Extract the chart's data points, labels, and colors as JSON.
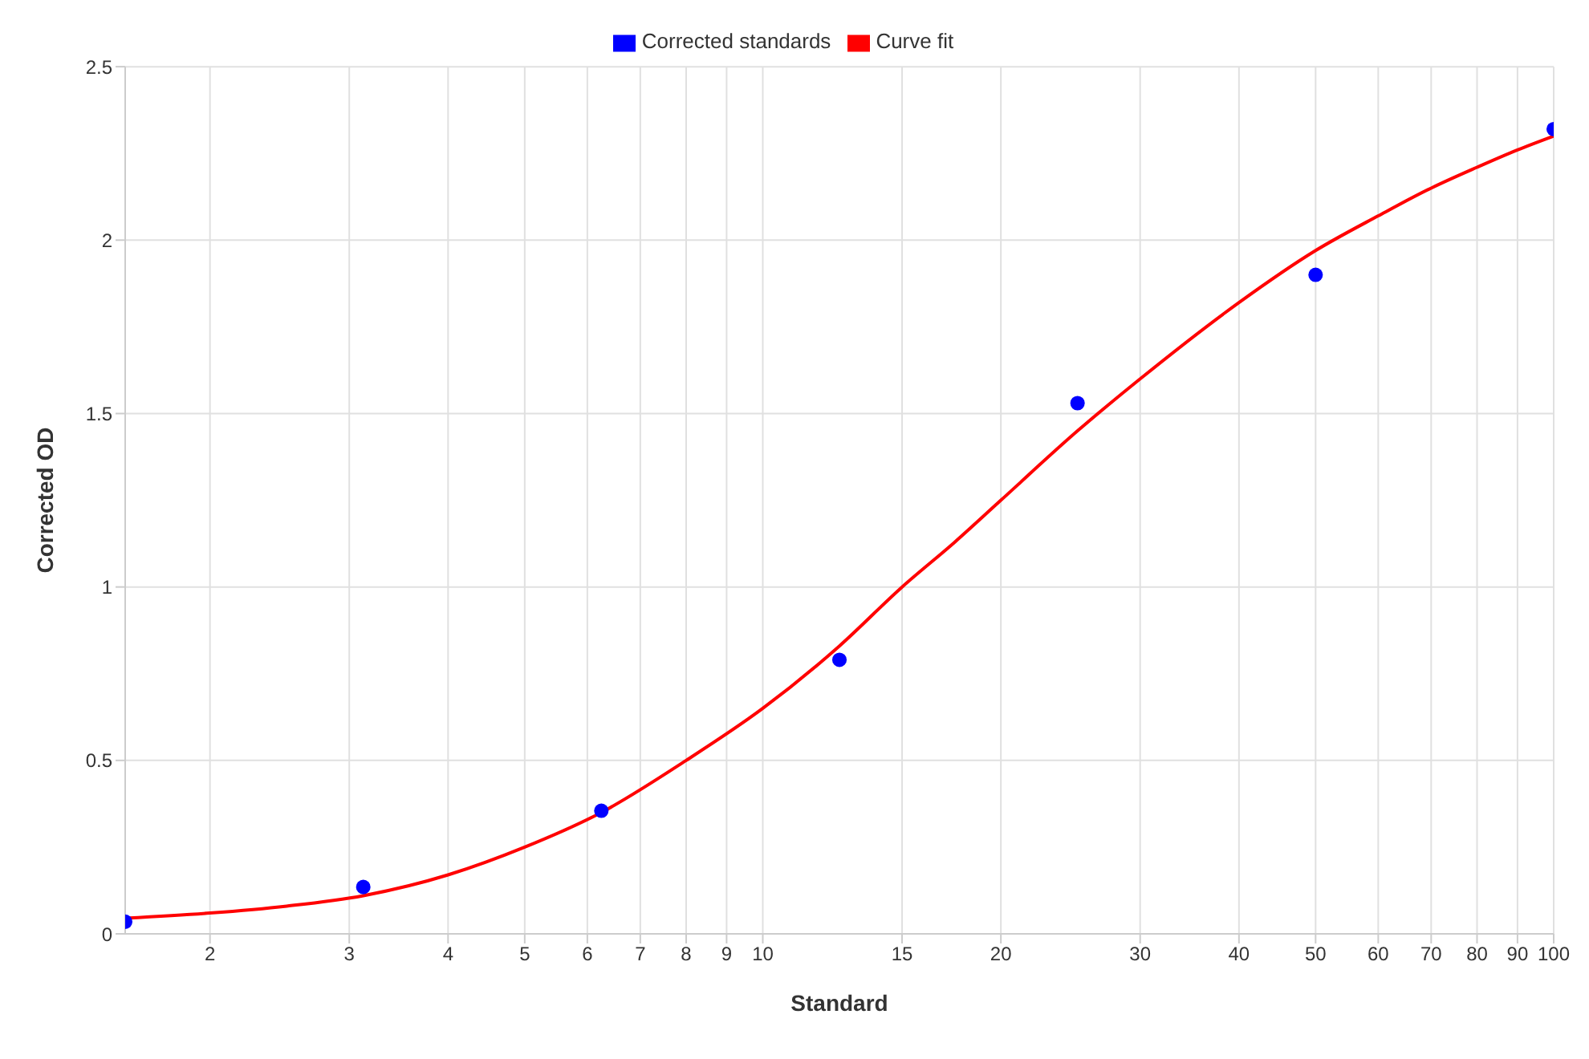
{
  "chart_data": {
    "type": "scatter",
    "xlabel": "Standard",
    "ylabel": "Corrected OD",
    "log": "x",
    "grid": true,
    "legend": "top",
    "xlim": [
      1.5625,
      100
    ],
    "xticks": [
      2,
      3,
      4,
      5,
      6,
      7,
      8,
      9,
      10,
      15,
      20,
      30,
      40,
      50,
      60,
      70,
      80,
      90,
      100
    ],
    "ylim": [
      0,
      2.5
    ],
    "yticks": [
      0,
      0.5,
      1,
      1.5,
      2,
      2.5
    ],
    "series": [
      {
        "name": "Corrected standards",
        "marker": "circle",
        "color": "#0000ff",
        "x": [
          1.5625,
          3.125,
          6.25,
          12.5,
          25,
          50,
          100
        ],
        "values": [
          0.035,
          0.135,
          0.355,
          0.79,
          1.53,
          1.9,
          2.32
        ]
      },
      {
        "name": "Curve fit",
        "type": "line",
        "marker": "none",
        "line_style": "solid",
        "color": "#ff0000",
        "x": [
          1.5625,
          2,
          2.5,
          3.125,
          4,
          5,
          6.25,
          8,
          10,
          12.5,
          15,
          17.5,
          20,
          25,
          30,
          40,
          50,
          60,
          70,
          80,
          90,
          100
        ],
        "values": [
          0.045,
          0.06,
          0.08,
          0.11,
          0.17,
          0.25,
          0.35,
          0.5,
          0.65,
          0.83,
          1.0,
          1.13,
          1.25,
          1.45,
          1.6,
          1.82,
          1.97,
          2.07,
          2.15,
          2.21,
          2.26,
          2.3
        ]
      }
    ]
  }
}
